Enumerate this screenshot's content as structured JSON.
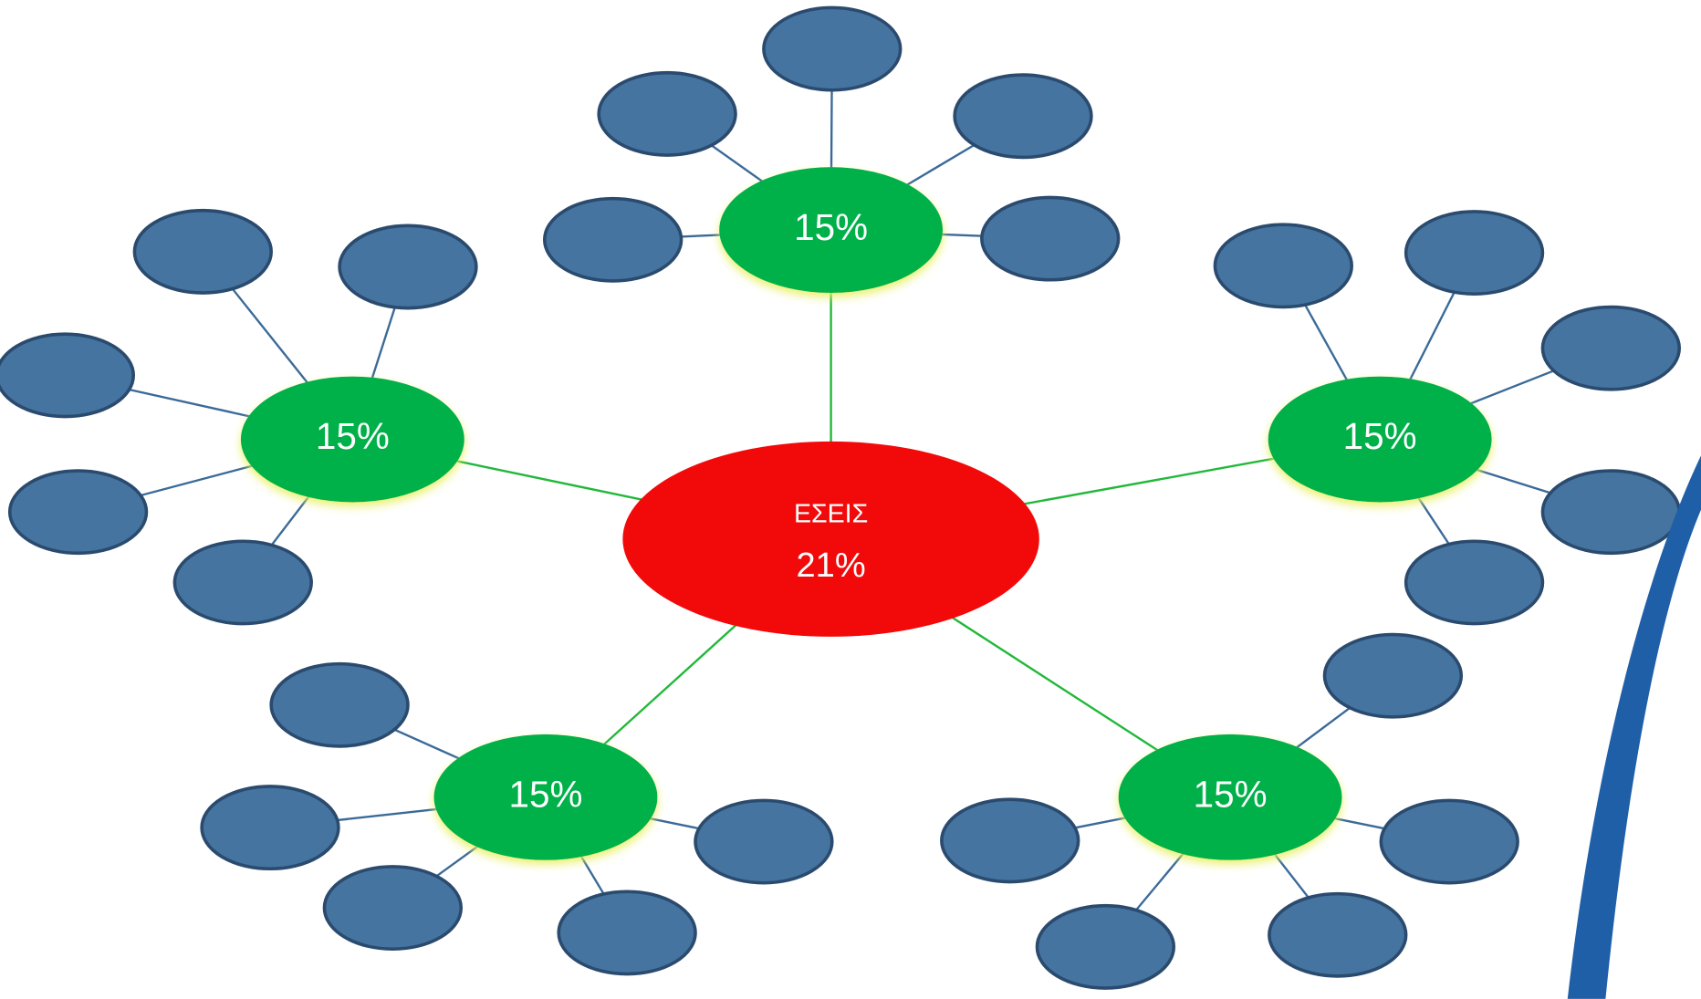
{
  "center": {
    "title": "ΕΣΕΙΣ",
    "value": "21%"
  },
  "nodes": [
    {
      "label": "15%"
    },
    {
      "label": "15%"
    },
    {
      "label": "15%"
    },
    {
      "label": "15%"
    },
    {
      "label": "15%"
    }
  ]
}
